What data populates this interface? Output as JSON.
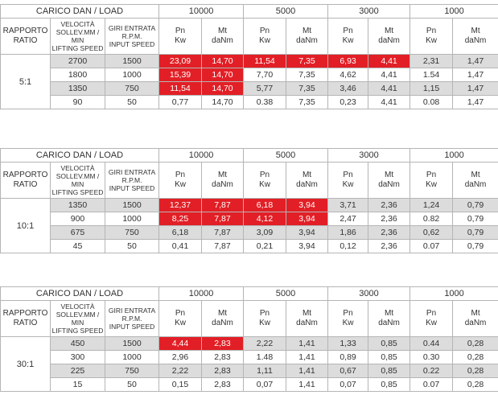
{
  "tables": [
    {
      "load_header": "CARICO DAN / LOAD",
      "loads": [
        "10000",
        "5000",
        "3000",
        "1000"
      ],
      "col_ratio": "RAPPORTO\nRATIO",
      "col_speed": "VELOCITÀ\nSOLLEV.MM / MIN\nLIFTING SPEED",
      "col_rpm": "GIRI ENTRATA\nR.P.M.\nINPUT SPEED",
      "col_pn": "Pn\nKw",
      "col_mt": "Mt\ndaNm",
      "ratio": "5:1",
      "rows": [
        [
          "2700",
          "1500",
          "23,09",
          "14,70",
          "11,54",
          "7,35",
          "6,93",
          "4,41",
          "2,31",
          "1,47"
        ],
        [
          "1800",
          "1000",
          "15,39",
          "14,70",
          "7,70",
          "7,35",
          "4,62",
          "4,41",
          "1.54",
          "1,47"
        ],
        [
          "1350",
          "750",
          "11,54",
          "14,70",
          "5,77",
          "7,35",
          "3,46",
          "4,41",
          "1,15",
          "1,47"
        ],
        [
          "90",
          "50",
          "0,77",
          "14,70",
          "0.38",
          "7,35",
          "0,23",
          "4,41",
          "0.08",
          "1,47"
        ]
      ]
    },
    {
      "load_header": "CARICO DAN / LOAD",
      "loads": [
        "10000",
        "5000",
        "3000",
        "1000"
      ],
      "col_ratio": "RAPPORTO\nRATIO",
      "col_speed": "VELOCITÀ\nSOLLEV.MM / MIN\nLIFTING SPEED",
      "col_rpm": "GIRI ENTRATA\nR.P.M.\nINPUT SPEED",
      "col_pn": "Pn\nKw",
      "col_mt": "Mt\ndaNm",
      "ratio": "10:1",
      "rows": [
        [
          "1350",
          "1500",
          "12,37",
          "7,87",
          "6,18",
          "3,94",
          "3,71",
          "2,36",
          "1,24",
          "0,79"
        ],
        [
          "900",
          "1000",
          "8,25",
          "7,87",
          "4,12",
          "3,94",
          "2,47",
          "2,36",
          "0.82",
          "0,79"
        ],
        [
          "675",
          "750",
          "6,18",
          "7,87",
          "3,09",
          "3,94",
          "1,86",
          "2,36",
          "0,62",
          "0,79"
        ],
        [
          "45",
          "50",
          "0,41",
          "7,87",
          "0,21",
          "3,94",
          "0,12",
          "2,36",
          "0.07",
          "0,79"
        ]
      ]
    },
    {
      "load_header": "CARICO DAN / LOAD",
      "loads": [
        "10000",
        "5000",
        "3000",
        "1000"
      ],
      "col_ratio": "RAPPORTO\nRATIO",
      "col_speed": "VELOCITÀ\nSOLLEV.MM / MIN\nLIFTING SPEED",
      "col_rpm": "GIRI ENTRATA\nR.P.M.\nINPUT SPEED",
      "col_pn": "Pn\nKw",
      "col_mt": "Mt\ndaNm",
      "ratio": "30:1",
      "rows": [
        [
          "450",
          "1500",
          "4,44",
          "2,83",
          "2,22",
          "1,41",
          "1,33",
          "0,85",
          "0.44",
          "0,28"
        ],
        [
          "300",
          "1000",
          "2,96",
          "2,83",
          "1.48",
          "1,41",
          "0,89",
          "0,85",
          "0.30",
          "0,28"
        ],
        [
          "225",
          "750",
          "2,22",
          "2,83",
          "1,11",
          "1,41",
          "0,67",
          "0,85",
          "0.22",
          "0,28"
        ],
        [
          "15",
          "50",
          "0,15",
          "2,83",
          "0,07",
          "1,41",
          "0,07",
          "0,85",
          "0.07",
          "0,28"
        ]
      ]
    }
  ]
}
